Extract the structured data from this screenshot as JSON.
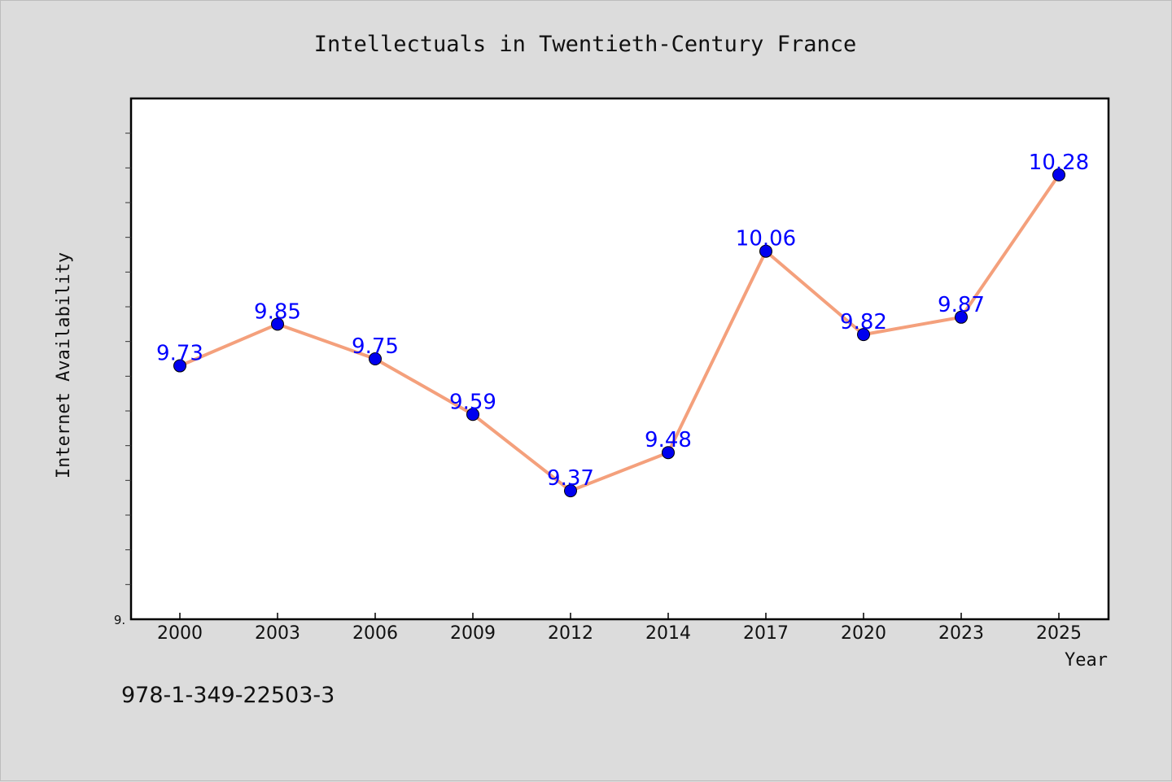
{
  "chart_data": {
    "type": "line",
    "title": "Intellectuals in Twentieth-Century France",
    "xlabel": "Year",
    "ylabel": "Internet Availability",
    "x": [
      "2000",
      "2003",
      "2006",
      "2009",
      "2012",
      "2014",
      "2017",
      "2020",
      "2023",
      "2025"
    ],
    "series": [
      {
        "values": [
          9.73,
          9.85,
          9.75,
          9.59,
          9.37,
          9.48,
          10.06,
          9.82,
          9.87,
          10.28
        ]
      }
    ],
    "data_labels": [
      "9.73",
      "9.85",
      "9.75",
      "9.59",
      "9.37",
      "9.48",
      "10.06",
      "9.82",
      "9.87",
      "10.28"
    ],
    "ylim": [
      9.0,
      10.5
    ],
    "y_tick_label": "9.",
    "grid": false,
    "legend": "none",
    "line_color": "#f4a07c",
    "marker_color": "#0000ee",
    "label_color": "#0000ff"
  },
  "footnote": "978-1-349-22503-3"
}
